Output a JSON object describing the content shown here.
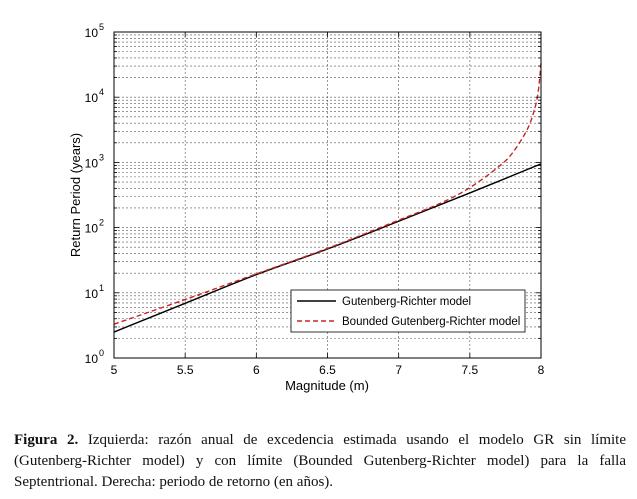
{
  "chart_data": {
    "type": "line",
    "xlabel": "Magnitude (m)",
    "ylabel": "Return Period (years)",
    "xlim": [
      5,
      8
    ],
    "ylim": [
      1,
      100000
    ],
    "y_scale": "log",
    "grid": "on",
    "legend_position": "bottom-right",
    "x_ticks": [
      "5",
      "5.5",
      "6",
      "6.5",
      "7",
      "7.5",
      "8"
    ],
    "y_ticks": [
      {
        "base": "10",
        "exp": "0",
        "value": 1
      },
      {
        "base": "10",
        "exp": "1",
        "value": 10
      },
      {
        "base": "10",
        "exp": "2",
        "value": 100
      },
      {
        "base": "10",
        "exp": "3",
        "value": 1000
      },
      {
        "base": "10",
        "exp": "4",
        "value": 10000
      },
      {
        "base": "10",
        "exp": "5",
        "value": 100000
      }
    ],
    "series": [
      {
        "name": "Gutenberg-Richter model",
        "color": "#000000",
        "style": "solid",
        "x": [
          5.0,
          5.5,
          6.0,
          6.5,
          7.0,
          7.5,
          8.0
        ],
        "y": [
          2.5,
          6.9,
          19,
          47,
          125,
          340,
          950
        ]
      },
      {
        "name": "Bounded Gutenberg-Richter model",
        "color": "#cc2222",
        "style": "dashed",
        "x": [
          5.0,
          5.5,
          6.0,
          6.5,
          7.0,
          7.3,
          7.5,
          7.7,
          7.8,
          7.9,
          7.95,
          7.98,
          8.0
        ],
        "y": [
          3.3,
          7.9,
          19.5,
          48,
          130,
          240,
          410,
          850,
          1400,
          3100,
          6000,
          12000,
          33000
        ]
      }
    ]
  },
  "caption": {
    "label": "Figura 2.",
    "text": " Izquierda: razón anual de excedencia estimada usando el modelo GR sin límite (Gutenberg-Richter model) y con límite (Bounded Gutenberg-Richter model) para la falla Septentrional. Derecha: periodo de retorno (en años)."
  }
}
